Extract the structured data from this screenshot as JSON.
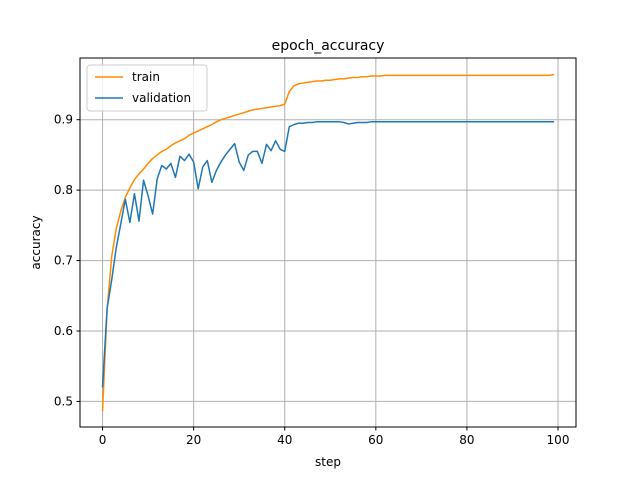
{
  "chart_data": {
    "type": "line",
    "title": "epoch_accuracy",
    "xlabel": "step",
    "ylabel": "accuracy",
    "xlim": [
      -4.95,
      103.95
    ],
    "ylim": [
      0.4637,
      0.9876
    ],
    "xticks": [
      0,
      20,
      40,
      60,
      80,
      100
    ],
    "yticks": [
      0.5,
      0.6,
      0.7,
      0.8,
      0.9
    ],
    "xtick_labels": [
      "0",
      "20",
      "40",
      "60",
      "80",
      "100"
    ],
    "ytick_labels": [
      "0.5",
      "0.6",
      "0.7",
      "0.8",
      "0.9"
    ],
    "grid": true,
    "legend_position": "top-left",
    "colors": {
      "train": "#ff8c00",
      "validation": "#1f77b4"
    },
    "series": [
      {
        "name": "train",
        "values": [
          0.487,
          0.63,
          0.705,
          0.745,
          0.77,
          0.79,
          0.803,
          0.815,
          0.823,
          0.83,
          0.838,
          0.845,
          0.85,
          0.855,
          0.858,
          0.863,
          0.867,
          0.87,
          0.873,
          0.878,
          0.881,
          0.884,
          0.887,
          0.89,
          0.893,
          0.897,
          0.9,
          0.902,
          0.904,
          0.906,
          0.908,
          0.91,
          0.912,
          0.914,
          0.915,
          0.916,
          0.917,
          0.918,
          0.919,
          0.92,
          0.922,
          0.94,
          0.948,
          0.951,
          0.952,
          0.953,
          0.954,
          0.955,
          0.955,
          0.956,
          0.956,
          0.957,
          0.958,
          0.958,
          0.959,
          0.96,
          0.96,
          0.961,
          0.961,
          0.962,
          0.962,
          0.962,
          0.963,
          0.963,
          0.963,
          0.963,
          0.963,
          0.963,
          0.963,
          0.963,
          0.963,
          0.963,
          0.963,
          0.963,
          0.963,
          0.963,
          0.963,
          0.963,
          0.963,
          0.963,
          0.963,
          0.963,
          0.963,
          0.963,
          0.963,
          0.963,
          0.963,
          0.963,
          0.963,
          0.963,
          0.963,
          0.963,
          0.963,
          0.963,
          0.963,
          0.963,
          0.963,
          0.963,
          0.963,
          0.964
        ]
      },
      {
        "name": "validation",
        "values": [
          0.521,
          0.632,
          0.672,
          0.718,
          0.752,
          0.787,
          0.754,
          0.795,
          0.756,
          0.814,
          0.792,
          0.766,
          0.816,
          0.835,
          0.83,
          0.838,
          0.818,
          0.848,
          0.842,
          0.851,
          0.84,
          0.802,
          0.833,
          0.842,
          0.811,
          0.828,
          0.84,
          0.85,
          0.858,
          0.866,
          0.84,
          0.828,
          0.85,
          0.855,
          0.855,
          0.838,
          0.865,
          0.856,
          0.87,
          0.858,
          0.855,
          0.89,
          0.893,
          0.895,
          0.895,
          0.896,
          0.896,
          0.897,
          0.897,
          0.897,
          0.897,
          0.897,
          0.897,
          0.896,
          0.894,
          0.895,
          0.896,
          0.896,
          0.896,
          0.897,
          0.897,
          0.897,
          0.897,
          0.897,
          0.897,
          0.897,
          0.897,
          0.897,
          0.897,
          0.897,
          0.897,
          0.897,
          0.897,
          0.897,
          0.897,
          0.897,
          0.897,
          0.897,
          0.897,
          0.897,
          0.897,
          0.897,
          0.897,
          0.897,
          0.897,
          0.897,
          0.897,
          0.897,
          0.897,
          0.897,
          0.897,
          0.897,
          0.897,
          0.897,
          0.897,
          0.897,
          0.897,
          0.897,
          0.897,
          0.897
        ]
      }
    ]
  }
}
